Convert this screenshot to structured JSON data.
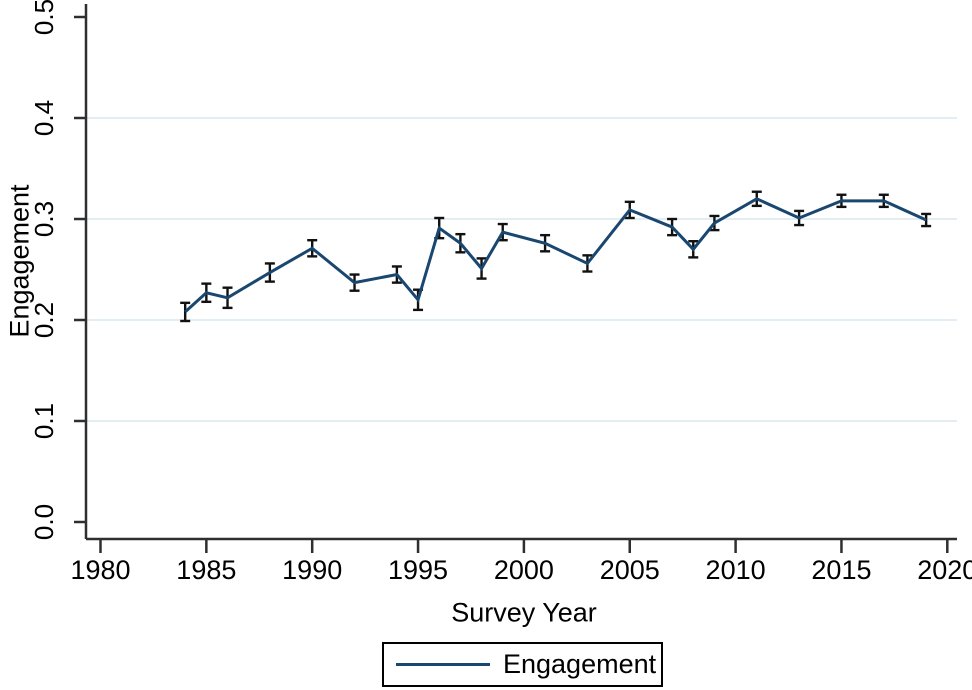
{
  "chart_data": {
    "type": "line",
    "title": "",
    "xlabel": "Survey Year",
    "ylabel": "Engagement",
    "x_ticks": [
      1980,
      1985,
      1990,
      1995,
      2000,
      2005,
      2010,
      2015,
      2020
    ],
    "y_ticks": [
      0.0,
      0.1,
      0.2,
      0.3,
      0.4,
      0.5
    ],
    "xlim": [
      1979.3,
      2020.5
    ],
    "ylim": [
      0.0,
      0.5
    ],
    "grid": "horizontal gridlines at 0.1 through 0.4",
    "error_bars": true,
    "legend": {
      "position": "bottom-center",
      "entries": [
        "Engagement"
      ]
    },
    "series": [
      {
        "name": "Engagement",
        "x": [
          1984,
          1985,
          1986,
          1988,
          1990,
          1992,
          1994,
          1995,
          1996,
          1997,
          1998,
          1999,
          2001,
          2003,
          2005,
          2007,
          2008,
          2009,
          2011,
          2013,
          2015,
          2017,
          2019
        ],
        "y": [
          0.208,
          0.227,
          0.222,
          0.247,
          0.271,
          0.237,
          0.245,
          0.22,
          0.291,
          0.276,
          0.251,
          0.287,
          0.276,
          0.256,
          0.309,
          0.292,
          0.27,
          0.296,
          0.32,
          0.301,
          0.318,
          0.318,
          0.299
        ],
        "ci_half": [
          0.009,
          0.009,
          0.01,
          0.009,
          0.008,
          0.008,
          0.008,
          0.01,
          0.01,
          0.009,
          0.01,
          0.008,
          0.008,
          0.008,
          0.008,
          0.008,
          0.008,
          0.007,
          0.007,
          0.007,
          0.006,
          0.006,
          0.006
        ]
      }
    ],
    "colors": {
      "line": "#1a476f",
      "error_bar": "#111111",
      "grid": "#e3edf4",
      "axis": "#2f2f2f",
      "text": "#000000",
      "legend_border": "#000000",
      "background": "#ffffff"
    }
  }
}
